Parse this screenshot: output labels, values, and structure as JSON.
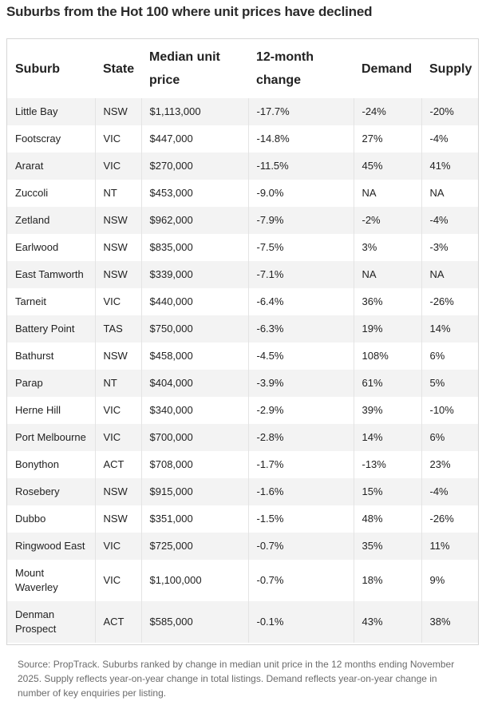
{
  "title": "Suburbs from the Hot 100 where unit prices have declined",
  "table": {
    "headers": [
      "Suburb",
      "State",
      "Median unit price",
      "12-month change",
      "Demand",
      "Supply"
    ],
    "rows": [
      [
        "Little Bay",
        "NSW",
        "$1,113,000",
        "-17.7%",
        "-24%",
        "-20%"
      ],
      [
        "Footscray",
        "VIC",
        "$447,000",
        "-14.8%",
        "27%",
        "-4%"
      ],
      [
        "Ararat",
        "VIC",
        "$270,000",
        "-11.5%",
        "45%",
        "41%"
      ],
      [
        "Zuccoli",
        "NT",
        "$453,000",
        "-9.0%",
        "NA",
        "NA"
      ],
      [
        "Zetland",
        "NSW",
        "$962,000",
        "-7.9%",
        "-2%",
        "-4%"
      ],
      [
        "Earlwood",
        "NSW",
        "$835,000",
        "-7.5%",
        "3%",
        "-3%"
      ],
      [
        "East Tamworth",
        "NSW",
        "$339,000",
        "-7.1%",
        "NA",
        "NA"
      ],
      [
        "Tarneit",
        "VIC",
        "$440,000",
        "-6.4%",
        "36%",
        "-26%"
      ],
      [
        "Battery Point",
        "TAS",
        "$750,000",
        "-6.3%",
        "19%",
        "14%"
      ],
      [
        "Bathurst",
        "NSW",
        "$458,000",
        "-4.5%",
        "108%",
        "6%"
      ],
      [
        "Parap",
        "NT",
        "$404,000",
        "-3.9%",
        "61%",
        "5%"
      ],
      [
        "Herne Hill",
        "VIC",
        "$340,000",
        "-2.9%",
        "39%",
        "-10%"
      ],
      [
        "Port Melbourne",
        "VIC",
        "$700,000",
        "-2.8%",
        "14%",
        "6%"
      ],
      [
        "Bonython",
        "ACT",
        "$708,000",
        "-1.7%",
        "-13%",
        "23%"
      ],
      [
        "Rosebery",
        "NSW",
        "$915,000",
        "-1.6%",
        "15%",
        "-4%"
      ],
      [
        "Dubbo",
        "NSW",
        "$351,000",
        "-1.5%",
        "48%",
        "-26%"
      ],
      [
        "Ringwood East",
        "VIC",
        "$725,000",
        "-0.7%",
        "35%",
        "11%"
      ],
      [
        "Mount Waverley",
        "VIC",
        "$1,100,000",
        "-0.7%",
        "18%",
        "9%"
      ],
      [
        "Denman Prospect",
        "ACT",
        "$585,000",
        "-0.1%",
        "43%",
        "38%"
      ]
    ]
  },
  "source": "Source: PropTrack. Suburbs ranked by change in median unit price in the 12 months ending November 2025. Supply reflects year-on-year change in total listings. Demand reflects year-on-year change in number of key enquiries per listing."
}
